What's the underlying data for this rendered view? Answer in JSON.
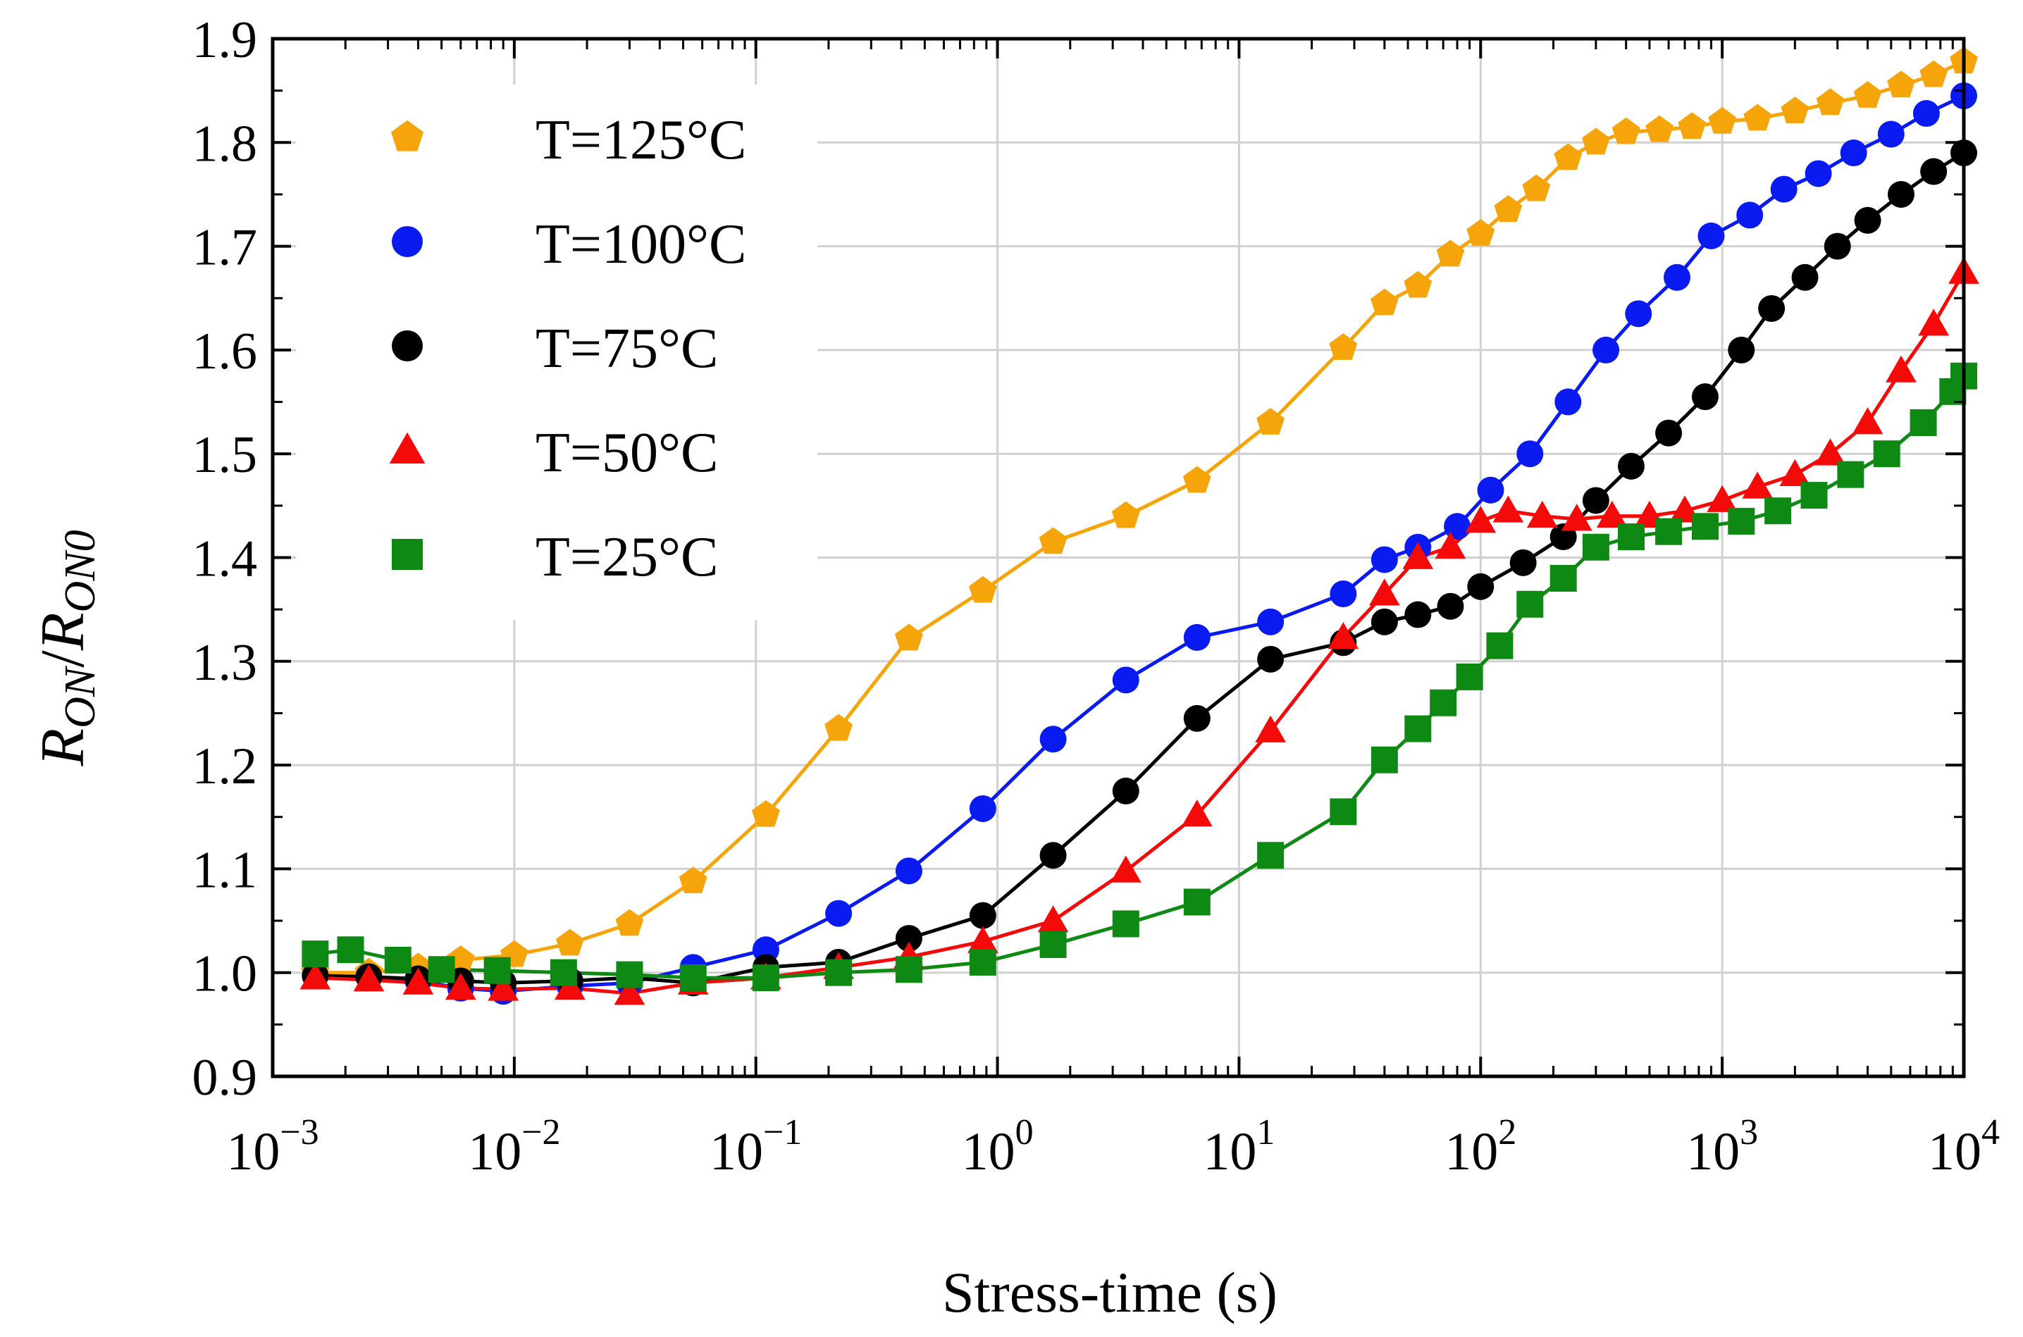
{
  "chart_data": {
    "type": "scatter",
    "title": "",
    "xlabel": "Stress-time (s)",
    "ylabel": {
      "main": "R",
      "sub": "ON",
      "sep": "/",
      "main2": "R",
      "sub2": "ON0"
    },
    "xscale": "log",
    "xlim": [
      0.001,
      10000
    ],
    "ylim": [
      0.9,
      1.9
    ],
    "grid": true,
    "legend_position": "top-left",
    "x_ticks": [
      {
        "base": "10",
        "exp": "−3",
        "value": 0.001
      },
      {
        "base": "10",
        "exp": "−2",
        "value": 0.01
      },
      {
        "base": "10",
        "exp": "−1",
        "value": 0.1
      },
      {
        "base": "10",
        "exp": "0",
        "value": 1
      },
      {
        "base": "10",
        "exp": "1",
        "value": 10
      },
      {
        "base": "10",
        "exp": "2",
        "value": 100
      },
      {
        "base": "10",
        "exp": "3",
        "value": 1000
      },
      {
        "base": "10",
        "exp": "4",
        "value": 10000
      }
    ],
    "y_ticks": [
      "0.9",
      "1.0",
      "1.1",
      "1.2",
      "1.3",
      "1.4",
      "1.5",
      "1.6",
      "1.7",
      "1.8",
      "1.9"
    ],
    "series": [
      {
        "name": "T=125°C",
        "color": "#f5a40a",
        "marker": "pentagon",
        "x": [
          0.0015,
          0.0025,
          0.004,
          0.006,
          0.01,
          0.017,
          0.03,
          0.055,
          0.11,
          0.22,
          0.43,
          0.87,
          1.7,
          3.4,
          6.7,
          13.5,
          27,
          40,
          55,
          75,
          100,
          130,
          170,
          230,
          300,
          400,
          550,
          750,
          1000,
          1400,
          2000,
          2800,
          4000,
          5500,
          7500,
          10000
        ],
        "y": [
          1.0,
          1.0,
          1.005,
          1.012,
          1.017,
          1.028,
          1.047,
          1.088,
          1.152,
          1.235,
          1.322,
          1.368,
          1.415,
          1.44,
          1.474,
          1.53,
          1.602,
          1.645,
          1.662,
          1.692,
          1.712,
          1.735,
          1.755,
          1.785,
          1.8,
          1.81,
          1.812,
          1.815,
          1.82,
          1.823,
          1.83,
          1.838,
          1.845,
          1.855,
          1.865,
          1.878
        ]
      },
      {
        "name": "T=100°C",
        "color": "#0a1bf2",
        "marker": "circle",
        "x": [
          0.0015,
          0.0025,
          0.004,
          0.006,
          0.009,
          0.017,
          0.03,
          0.055,
          0.11,
          0.22,
          0.43,
          0.87,
          1.7,
          3.4,
          6.7,
          13.5,
          27,
          40,
          55,
          80,
          110,
          160,
          230,
          330,
          450,
          650,
          900,
          1300,
          1800,
          2500,
          3500,
          5000,
          7000,
          10000
        ],
        "y": [
          0.997,
          0.996,
          0.992,
          0.985,
          0.982,
          0.987,
          0.99,
          1.005,
          1.022,
          1.057,
          1.098,
          1.158,
          1.225,
          1.282,
          1.323,
          1.338,
          1.365,
          1.398,
          1.41,
          1.43,
          1.465,
          1.5,
          1.55,
          1.6,
          1.635,
          1.67,
          1.71,
          1.73,
          1.755,
          1.77,
          1.79,
          1.808,
          1.828,
          1.845
        ]
      },
      {
        "name": "T=75°C",
        "color": "#000000",
        "marker": "circle",
        "x": [
          0.0015,
          0.0025,
          0.004,
          0.006,
          0.009,
          0.017,
          0.03,
          0.055,
          0.11,
          0.22,
          0.43,
          0.87,
          1.7,
          3.4,
          6.7,
          13.5,
          27,
          40,
          55,
          75,
          100,
          150,
          220,
          300,
          420,
          600,
          850,
          1200,
          1600,
          2200,
          3000,
          4000,
          5500,
          7500,
          10000
        ],
        "y": [
          0.997,
          0.996,
          0.994,
          0.992,
          0.99,
          0.992,
          0.995,
          0.99,
          1.005,
          1.01,
          1.033,
          1.055,
          1.113,
          1.175,
          1.245,
          1.302,
          1.318,
          1.338,
          1.345,
          1.353,
          1.372,
          1.395,
          1.42,
          1.455,
          1.488,
          1.52,
          1.555,
          1.6,
          1.64,
          1.67,
          1.7,
          1.725,
          1.75,
          1.772,
          1.79
        ]
      },
      {
        "name": "T=50°C",
        "color": "#f50a0a",
        "marker": "triangle",
        "x": [
          0.0015,
          0.0025,
          0.004,
          0.006,
          0.009,
          0.017,
          0.03,
          0.055,
          0.11,
          0.22,
          0.43,
          0.87,
          1.7,
          3.4,
          6.7,
          13.5,
          27,
          40,
          55,
          75,
          100,
          130,
          180,
          250,
          350,
          500,
          700,
          1000,
          1400,
          2000,
          2800,
          4000,
          5500,
          7500,
          10000
        ],
        "y": [
          0.995,
          0.993,
          0.99,
          0.985,
          0.984,
          0.985,
          0.98,
          0.99,
          0.995,
          1.005,
          1.015,
          1.03,
          1.05,
          1.098,
          1.152,
          1.233,
          1.323,
          1.365,
          1.4,
          1.41,
          1.435,
          1.445,
          1.44,
          1.437,
          1.44,
          1.44,
          1.445,
          1.455,
          1.468,
          1.48,
          1.5,
          1.53,
          1.58,
          1.625,
          1.675
        ]
      },
      {
        "name": "T=25°C",
        "color": "#0e8a14",
        "marker": "square",
        "x": [
          0.0015,
          0.0021,
          0.0033,
          0.005,
          0.0085,
          0.016,
          0.03,
          0.055,
          0.11,
          0.22,
          0.43,
          0.87,
          1.7,
          3.4,
          6.7,
          13.5,
          27,
          40,
          55,
          70,
          90,
          120,
          160,
          220,
          300,
          420,
          600,
          850,
          1200,
          1700,
          2400,
          3400,
          4800,
          6800,
          9000,
          10000
        ],
        "y": [
          1.018,
          1.022,
          1.012,
          1.003,
          1.002,
          1.0,
          0.998,
          0.995,
          0.995,
          1.0,
          1.003,
          1.01,
          1.027,
          1.047,
          1.068,
          1.113,
          1.155,
          1.205,
          1.235,
          1.26,
          1.285,
          1.315,
          1.355,
          1.38,
          1.41,
          1.42,
          1.425,
          1.43,
          1.435,
          1.445,
          1.46,
          1.48,
          1.5,
          1.53,
          1.56,
          1.575
        ]
      }
    ]
  }
}
